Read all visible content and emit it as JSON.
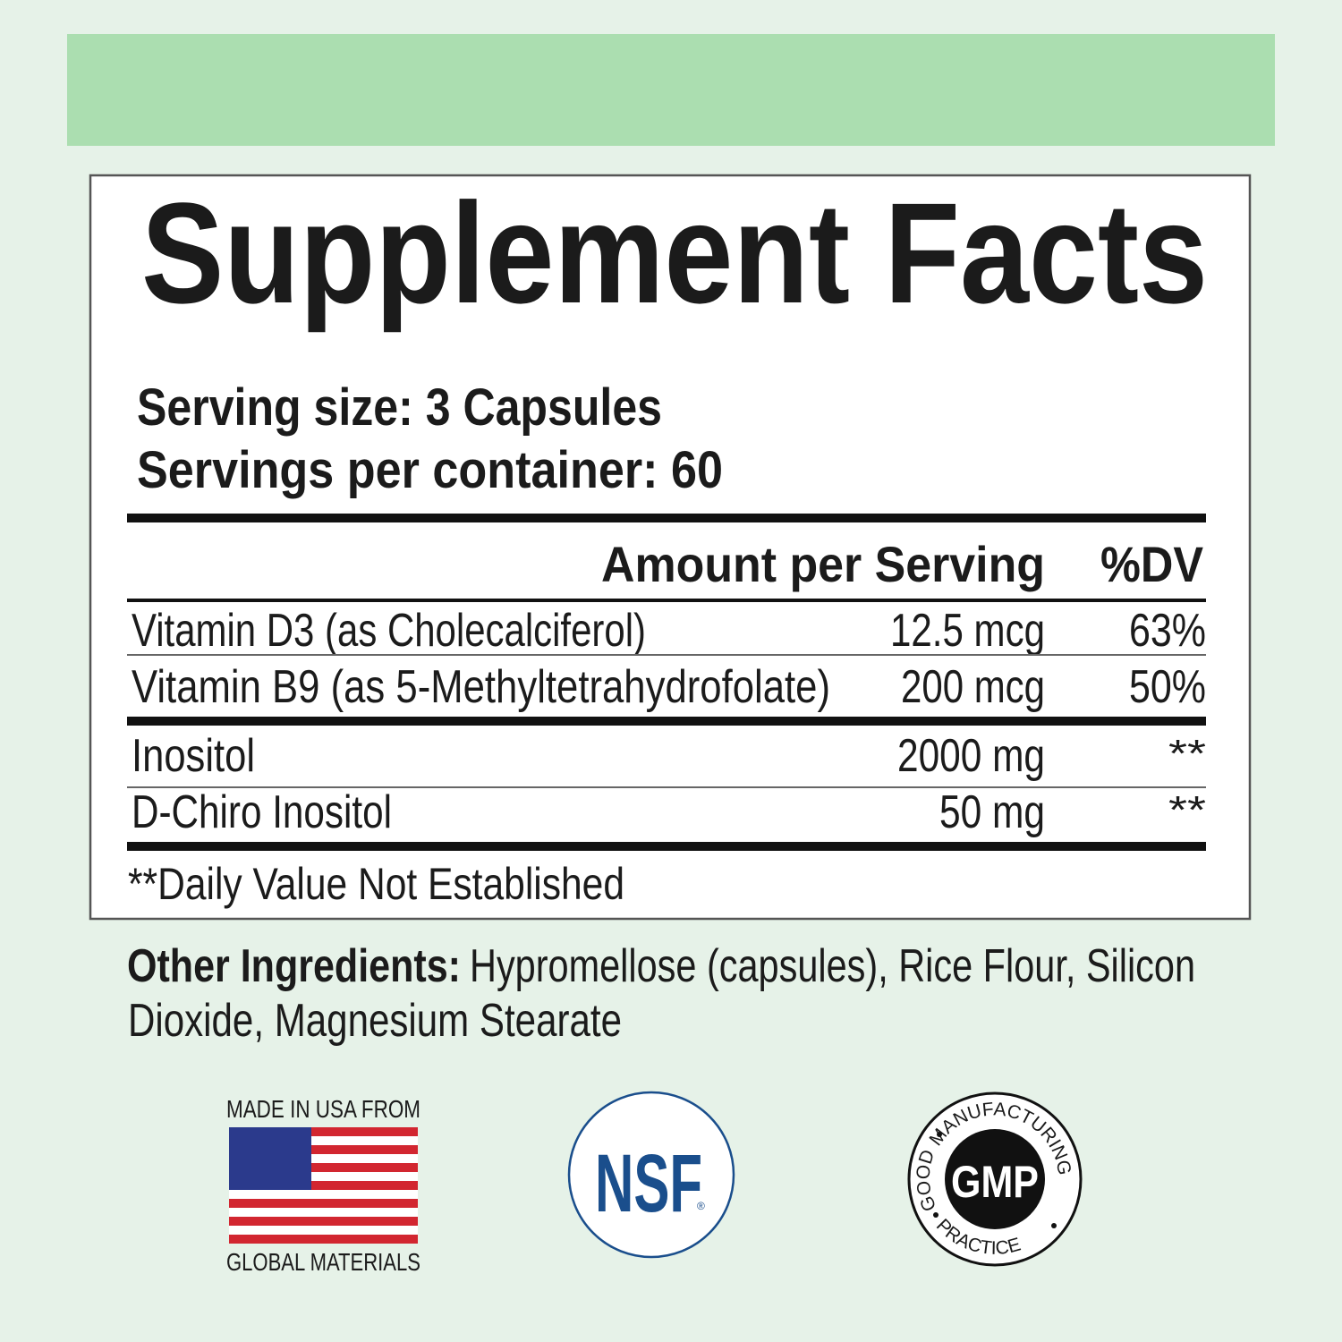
{
  "facts": {
    "title": "Supplement Facts",
    "serving_size": "Serving size: 3 Capsules",
    "servings_per_container": "Servings per container: 60",
    "header": {
      "amount": "Amount per Serving",
      "dv": "%DV"
    },
    "rows": [
      {
        "name": "Vitamin D3 (as Cholecalciferol)",
        "amount": "12.5 mcg",
        "dv": "63%"
      },
      {
        "name": "Vitamin B9 (as 5-Methyltetrahydrofolate)",
        "amount": "200 mcg",
        "dv": "50%"
      },
      {
        "name": "Inositol",
        "amount": "2000 mg",
        "dv": "**"
      },
      {
        "name": "D-Chiro Inositol",
        "amount": "50 mg",
        "dv": "**"
      }
    ],
    "footnote": "**Daily Value Not Established"
  },
  "other_ingredients": {
    "label": "Other Ingredients:",
    "lines": [
      "Hypromellose (capsules), Rice Flour, Silicon",
      "Dioxide, Magnesium Stearate"
    ]
  },
  "badges": {
    "usa": {
      "top": "MADE IN USA FROM",
      "bottom": "GLOBAL MATERIALS"
    },
    "nsf": {
      "label": "NSF",
      "mark": "®"
    },
    "gmp": {
      "label": "GMP",
      "top": "MANUFACTURING",
      "left": "GOOD",
      "bottom": "PRACTICE"
    }
  }
}
